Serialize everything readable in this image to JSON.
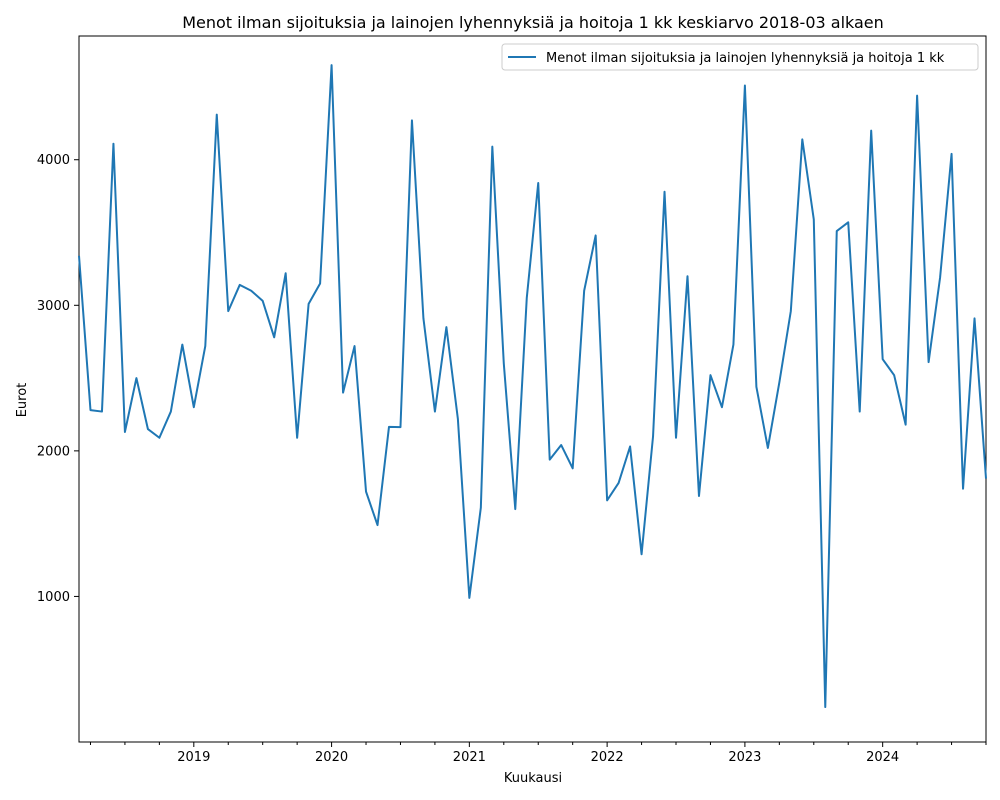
{
  "chart_data": {
    "type": "line",
    "title": "Menot ilman sijoituksia ja lainojen lyhennyksiä ja hoitoja 1 kk keskiarvo 2018-03 alkaen",
    "xlabel": "Kuukausi",
    "ylabel": "Eurot",
    "x_ticks": [
      "2019",
      "2020",
      "2021",
      "2022",
      "2023",
      "2024"
    ],
    "y_ticks": [
      "1000",
      "2000",
      "3000",
      "4000"
    ],
    "ylim": [
      0,
      4850
    ],
    "xlim": [
      "2018-03",
      "2024-10"
    ],
    "grid": false,
    "legend_position": "upper right",
    "color": "#1f77b4",
    "series": [
      {
        "name": "Menot ilman sijoituksia ja lainojen lyhennyksiä ja hoitoja 1 kk",
        "start": "2018-03",
        "values": [
          3340,
          2280,
          2270,
          4110,
          2130,
          2500,
          2150,
          2090,
          2270,
          2730,
          2300,
          2720,
          4310,
          2960,
          3140,
          3100,
          3030,
          2780,
          3220,
          2090,
          3010,
          3150,
          4650,
          2400,
          2720,
          1720,
          1490,
          2165,
          2163,
          4270,
          2910,
          2270,
          2850,
          2220,
          990,
          1610,
          4090,
          2600,
          1600,
          3050,
          3840,
          1940,
          2040,
          1880,
          3100,
          3480,
          1660,
          1780,
          2030,
          1290,
          2100,
          3780,
          2090,
          3200,
          1690,
          2520,
          2300,
          2730,
          4510,
          2440,
          2020,
          2470,
          2960,
          4140,
          3590,
          240,
          3510,
          3570,
          2270,
          4200,
          2630,
          2520,
          2180,
          4440,
          2610,
          3190,
          4040,
          1740,
          2910,
          1810
        ]
      }
    ]
  }
}
